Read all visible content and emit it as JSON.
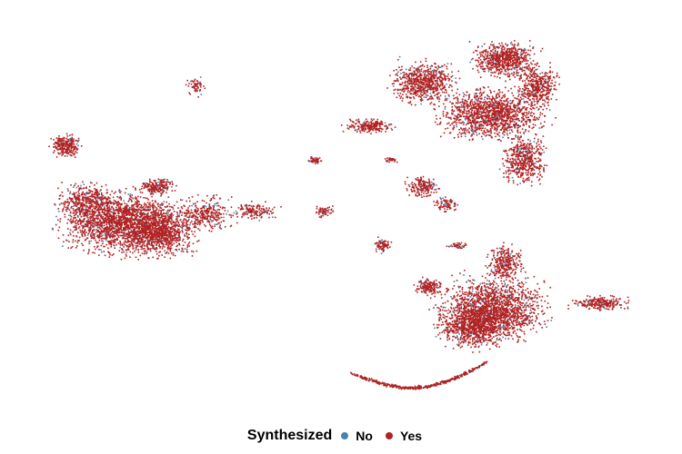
{
  "chart_data": {
    "type": "scatter",
    "title": "",
    "xlabel": "",
    "ylabel": "",
    "axes_visible": false,
    "grid": false,
    "legend_position": "bottom",
    "legend": {
      "title": "Synthesized",
      "entries": [
        {
          "label": "No",
          "color": "#4682B4"
        },
        {
          "label": "Yes",
          "color": "#B22222"
        }
      ]
    },
    "series": [
      {
        "name": "No",
        "color": "#4682B4"
      },
      {
        "name": "Yes",
        "color": "#B22222"
      }
    ]
  }
}
